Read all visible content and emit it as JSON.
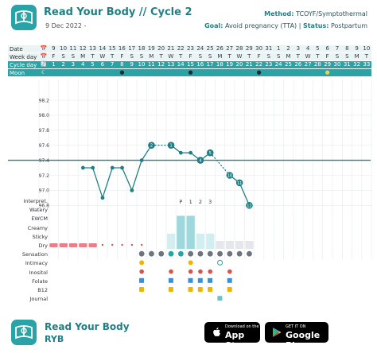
{
  "header": {
    "title": "Read Your Body // Cycle 2",
    "date": "9 Dec 2022 -",
    "method_label": "Method:",
    "method_value": "TCOYF/Symptothermal",
    "goal_label": "Goal:",
    "goal_value": "Avoid pregnancy (TTA)",
    "status_label": "Status:",
    "status_value": "Postpartum"
  },
  "rows": {
    "date_label": "Date",
    "weekday_label": "Week day",
    "cycleday_label": "Cycle day",
    "moon_label": "Moon",
    "dates": [
      "📅",
      "9",
      "10",
      "11",
      "12",
      "13",
      "14",
      "15",
      "16",
      "17",
      "18",
      "19",
      "20",
      "21",
      "22",
      "23",
      "24",
      "25",
      "26",
      "27",
      "28",
      "29",
      "30",
      "31",
      "1",
      "2",
      "3",
      "4",
      "5",
      "6",
      "7",
      "8",
      "9",
      "10"
    ],
    "weekdays": [
      "📅",
      "F",
      "S",
      "S",
      "M",
      "T",
      "W",
      "T",
      "F",
      "S",
      "S",
      "M",
      "T",
      "W",
      "T",
      "F",
      "S",
      "S",
      "M",
      "T",
      "W",
      "T",
      "F",
      "S",
      "S",
      "M",
      "T",
      "W",
      "T",
      "F",
      "S",
      "S",
      "M",
      "T"
    ],
    "cycledays": [
      "🔄",
      "1",
      "2",
      "3",
      "4",
      "5",
      "6",
      "7",
      "8",
      "9",
      "10",
      "11",
      "12",
      "13",
      "14",
      "15",
      "16",
      "17",
      "18",
      "19",
      "20",
      "21",
      "22",
      "23",
      "24",
      "25",
      "26",
      "27",
      "28",
      "29",
      "30",
      "31",
      "32",
      "33"
    ],
    "moon_icon": "☾"
  },
  "chart": {
    "y_ticks": [
      "98.2",
      "98.0",
      "97.8",
      "97.6",
      "97.4",
      "97.2",
      "97.0",
      "96.8"
    ],
    "y_values": [
      98.2,
      98.0,
      97.8,
      97.6,
      97.4,
      97.2,
      97.0,
      96.8
    ],
    "coverline": 97.4,
    "temps": [
      {
        "day": 4,
        "temp": 97.3
      },
      {
        "day": 5,
        "temp": 97.3
      },
      {
        "day": 6,
        "temp": 96.9
      },
      {
        "day": 7,
        "temp": 97.3
      },
      {
        "day": 8,
        "temp": 97.3
      },
      {
        "day": 9,
        "temp": 97.0
      },
      {
        "day": 10,
        "temp": 97.4
      },
      {
        "day": 11,
        "temp": 97.6
      },
      {
        "day": 13,
        "temp": 97.6
      },
      {
        "day": 14,
        "temp": 97.5
      },
      {
        "day": 15,
        "temp": 97.5
      },
      {
        "day": 16,
        "temp": 97.4
      },
      {
        "day": 17,
        "temp": 97.5
      },
      {
        "day": 19,
        "temp": 97.2
      },
      {
        "day": 20,
        "temp": 97.1
      },
      {
        "day": 21,
        "temp": 96.8
      }
    ],
    "labelled": [
      {
        "day": 11,
        "label": "2"
      },
      {
        "day": 13,
        "label": "1"
      },
      {
        "day": 16,
        "label": "4"
      },
      {
        "day": 17,
        "label": "5"
      },
      {
        "day": 19,
        "label": "10"
      },
      {
        "day": 20,
        "label": "11"
      },
      {
        "day": 21,
        "label": "12"
      }
    ],
    "interpret_marks": [
      {
        "day": 14,
        "label": "P"
      },
      {
        "day": 15,
        "label": "1"
      },
      {
        "day": 16,
        "label": "2"
      },
      {
        "day": 17,
        "label": "3"
      }
    ],
    "dry_bars": [
      {
        "day": 13,
        "level": 1
      },
      {
        "day": 14,
        "level": 3
      },
      {
        "day": 15,
        "level": 3
      },
      {
        "day": 16,
        "level": 1
      },
      {
        "day": 17,
        "level": 1
      }
    ]
  },
  "observations": {
    "labels": [
      "Interpret.",
      "Watery",
      "EWCM",
      "Creamy",
      "Sticky",
      "Dry",
      "Sensation",
      "Intimacy",
      "Inositol",
      "Folate",
      "B12",
      "Journal"
    ]
  },
  "footer": {
    "name": "Read Your Body",
    "abbr": "RYB",
    "appstore_small": "Download on the",
    "appstore_big": "App Store",
    "googleplay_small": "GET IT ON",
    "googleplay_big": "Google Play"
  }
}
